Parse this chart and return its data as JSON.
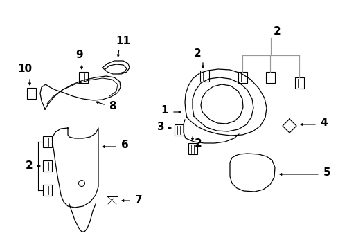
{
  "bg_color": "#ffffff",
  "lc": "#000000",
  "gray": "#999999",
  "fig_width": 4.89,
  "fig_height": 3.6,
  "dpi": 100
}
